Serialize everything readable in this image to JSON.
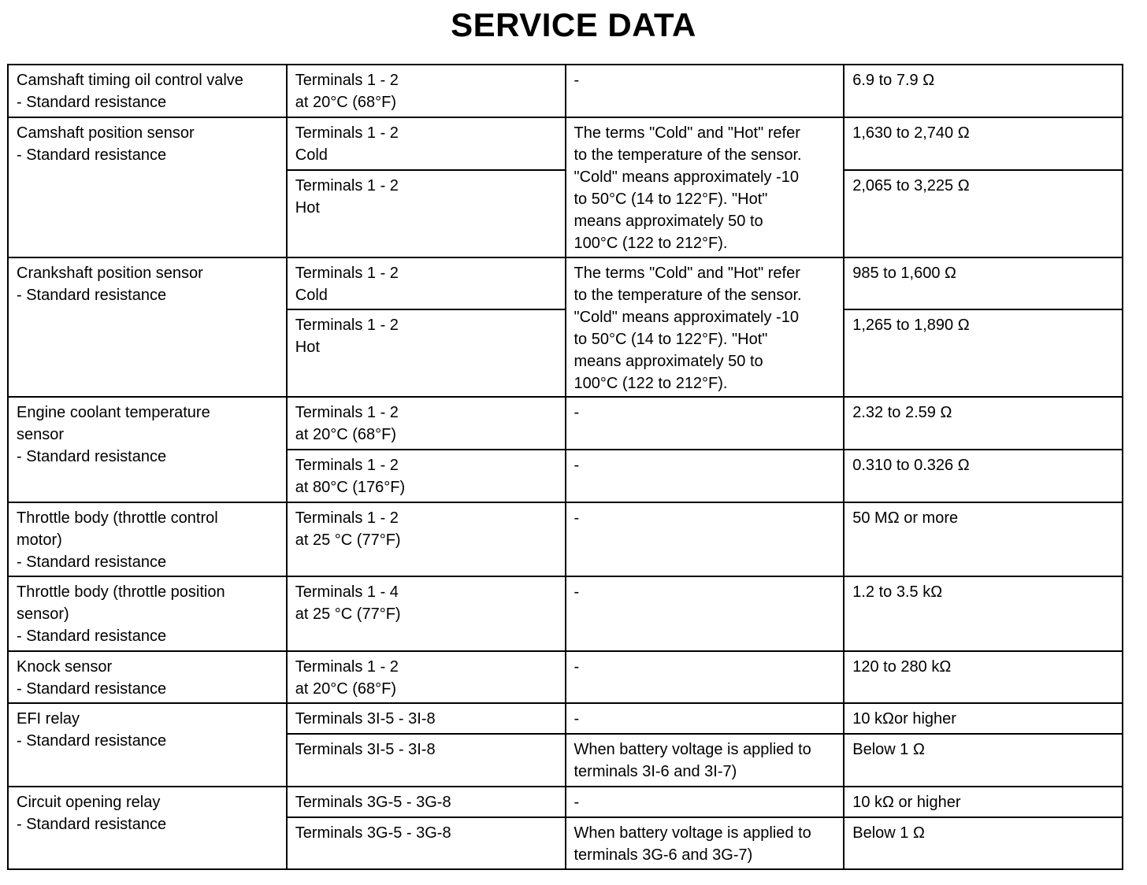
{
  "header": {
    "title": "SERVICE DATA"
  },
  "table": {
    "rows": [
      {
        "item": [
          "Camshaft timing oil control valve",
          "- Standard resistance"
        ],
        "subrows": [
          {
            "terminal": [
              "Terminals 1 - 2",
              "at 20°C (68°F)"
            ],
            "note": [
              "-"
            ],
            "spec": "6.9 to 7.9 Ω"
          }
        ]
      },
      {
        "item": [
          "Camshaft position sensor",
          "- Standard resistance"
        ],
        "note": [
          "The terms \"Cold\" and \"Hot\" refer",
          "to the temperature of the sensor.",
          "\"Cold\" means approximately -10",
          "to 50°C (14 to 122°F). \"Hot\"",
          "means approximately 50 to",
          "100°C (122 to 212°F)."
        ],
        "subrows": [
          {
            "terminal": [
              "Terminals 1 - 2",
              "Cold"
            ],
            "spec": "1,630 to 2,740 Ω"
          },
          {
            "terminal": [
              "Terminals 1 - 2",
              "Hot"
            ],
            "spec": "2,065 to 3,225 Ω"
          }
        ]
      },
      {
        "item": [
          "Crankshaft position sensor",
          "- Standard resistance"
        ],
        "note": [
          "The terms \"Cold\" and \"Hot\" refer",
          "to the temperature of the sensor.",
          "\"Cold\" means approximately -10",
          "to 50°C (14 to 122°F). \"Hot\"",
          "means approximately 50 to",
          "100°C (122 to 212°F)."
        ],
        "subrows": [
          {
            "terminal": [
              "Terminals 1 - 2",
              "Cold"
            ],
            "spec": "985 to 1,600 Ω"
          },
          {
            "terminal": [
              "Terminals 1 - 2",
              "Hot"
            ],
            "spec": "1,265 to 1,890 Ω"
          }
        ]
      },
      {
        "item": [
          "Engine coolant temperature",
          "sensor",
          "- Standard resistance"
        ],
        "subrows": [
          {
            "terminal": [
              "Terminals 1 - 2",
              "at 20°C (68°F)"
            ],
            "note": [
              "-"
            ],
            "spec": "2.32 to 2.59 Ω"
          },
          {
            "terminal": [
              "Terminals 1 - 2",
              "at 80°C (176°F)"
            ],
            "note": [
              "-"
            ],
            "spec": "0.310 to 0.326 Ω"
          }
        ]
      },
      {
        "item": [
          "Throttle body (throttle control",
          "motor)",
          "- Standard resistance"
        ],
        "subrows": [
          {
            "terminal": [
              "Terminals 1 - 2",
              "at 25 °C (77°F)"
            ],
            "note": [
              "-"
            ],
            "spec": "50 MΩ or more"
          }
        ]
      },
      {
        "item": [
          "Throttle body (throttle position",
          "sensor)",
          "- Standard resistance"
        ],
        "subrows": [
          {
            "terminal": [
              "Terminals 1 - 4",
              "at 25 °C (77°F)"
            ],
            "note": [
              "-"
            ],
            "spec": "1.2 to 3.5 kΩ"
          }
        ]
      },
      {
        "item": [
          "Knock sensor",
          "- Standard resistance"
        ],
        "subrows": [
          {
            "terminal": [
              "Terminals 1 - 2",
              "at 20°C (68°F)"
            ],
            "note": [
              "-"
            ],
            "spec": "120 to 280 kΩ"
          }
        ]
      },
      {
        "item": [
          "EFI relay",
          "- Standard resistance"
        ],
        "subrows": [
          {
            "terminal": [
              "Terminals 3I-5 - 3I-8"
            ],
            "note": [
              "-"
            ],
            "spec": "10 kΩor higher"
          },
          {
            "terminal": [
              "Terminals 3I-5 - 3I-8"
            ],
            "note": [
              "When battery voltage is applied to",
              "terminals 3I-6 and 3I-7)"
            ],
            "spec": "Below 1 Ω"
          }
        ]
      },
      {
        "item": [
          "Circuit opening relay",
          "- Standard resistance"
        ],
        "subrows": [
          {
            "terminal": [
              "Terminals 3G-5 - 3G-8"
            ],
            "note": [
              "-"
            ],
            "spec": "10 kΩ or higher"
          },
          {
            "terminal": [
              "Terminals 3G-5 - 3G-8"
            ],
            "note": [
              "When battery voltage is applied to",
              "terminals 3G-6 and 3G-7)"
            ],
            "spec": "Below 1 Ω"
          }
        ]
      }
    ]
  }
}
